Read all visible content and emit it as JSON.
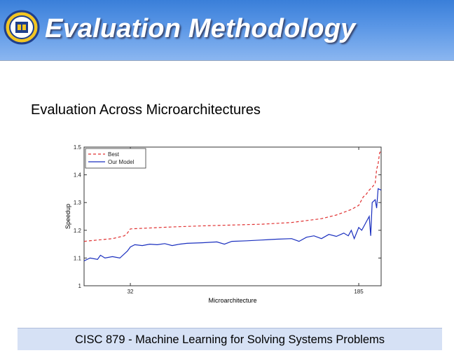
{
  "slide": {
    "title": "Evaluation Methodology",
    "subtitle": "Evaluation Across Microarchitectures",
    "footer": "CISC 879 - Machine Learning for Solving Systems Problems"
  },
  "logo": {
    "icon": "university-seal-icon",
    "colors": {
      "ring": "#1f3f8c",
      "fill": "#f2c522"
    }
  },
  "theme": {
    "header_top": "#3a7fd9",
    "footer_bg": "#d6e1f5"
  },
  "chart_data": {
    "type": "line",
    "title": "",
    "xlabel": "Microarchitecture",
    "ylabel": "Speedup",
    "xlim": [
      1,
      200
    ],
    "ylim": [
      1,
      1.5
    ],
    "x_ticks": [
      32,
      185
    ],
    "x_tick_labels": [
      "32",
      "185"
    ],
    "y_ticks": [
      1,
      1.1,
      1.2,
      1.3,
      1.4,
      1.5
    ],
    "y_tick_labels": [
      "1",
      "1.1",
      "1.2",
      "1.3",
      "1.4",
      "1.5"
    ],
    "grid": false,
    "legend_position": "top-left",
    "series": [
      {
        "name": "Best",
        "color": "#e03030",
        "style": "dashed",
        "x": [
          1,
          10,
          20,
          28,
          30,
          32,
          40,
          60,
          80,
          100,
          120,
          140,
          160,
          170,
          175,
          180,
          185,
          188,
          190,
          192,
          194,
          196,
          197,
          198,
          199,
          200
        ],
        "y": [
          1.16,
          1.165,
          1.17,
          1.18,
          1.19,
          1.205,
          1.207,
          1.212,
          1.216,
          1.219,
          1.222,
          1.228,
          1.242,
          1.255,
          1.265,
          1.275,
          1.29,
          1.32,
          1.33,
          1.345,
          1.355,
          1.37,
          1.42,
          1.44,
          1.48,
          1.485
        ]
      },
      {
        "name": "Our Model",
        "color": "#1a2fbf",
        "style": "solid",
        "x": [
          1,
          5,
          10,
          12,
          15,
          20,
          25,
          30,
          32,
          35,
          40,
          45,
          50,
          55,
          60,
          65,
          70,
          80,
          90,
          95,
          100,
          110,
          120,
          130,
          140,
          145,
          150,
          155,
          160,
          165,
          170,
          175,
          178,
          180,
          182,
          185,
          187,
          189,
          190,
          192,
          193,
          194,
          196,
          197,
          198,
          200
        ],
        "y": [
          1.09,
          1.1,
          1.095,
          1.11,
          1.1,
          1.105,
          1.1,
          1.125,
          1.14,
          1.148,
          1.145,
          1.15,
          1.148,
          1.152,
          1.145,
          1.15,
          1.153,
          1.155,
          1.158,
          1.15,
          1.16,
          1.162,
          1.165,
          1.168,
          1.17,
          1.16,
          1.175,
          1.18,
          1.17,
          1.185,
          1.178,
          1.19,
          1.18,
          1.2,
          1.17,
          1.21,
          1.2,
          1.22,
          1.23,
          1.25,
          1.18,
          1.3,
          1.31,
          1.28,
          1.35,
          1.345
        ]
      }
    ]
  }
}
